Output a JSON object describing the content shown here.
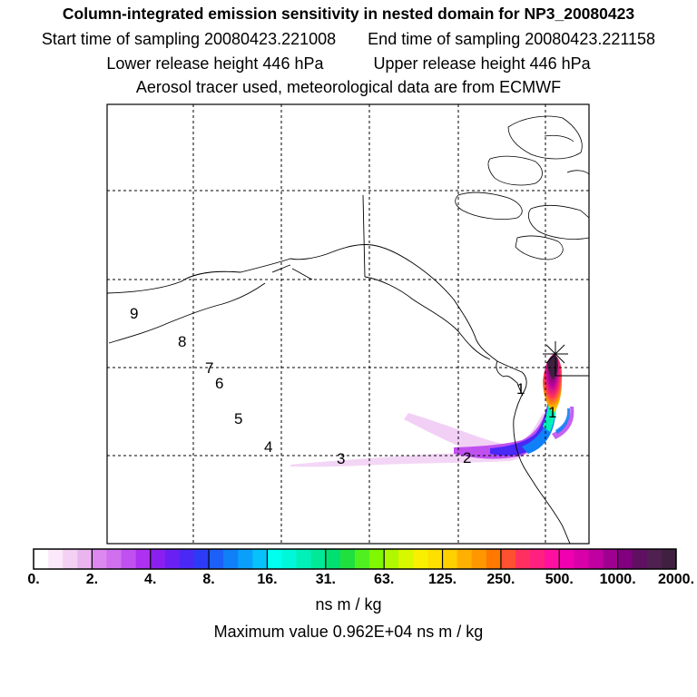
{
  "header": {
    "title": "Column-integrated emission sensitivity in nested domain for NP3_20080423",
    "start_time": "Start time of sampling 20080423.221008",
    "end_time": "End time of sampling 20080423.221158",
    "lower_height": "Lower release height  446 hPa",
    "upper_height": "Upper release height  446 hPa",
    "tracer_note": "Aerosol tracer used, meteorological data are from ECMWF"
  },
  "map": {
    "position_labels": [
      "1",
      "2",
      "3",
      "4",
      "5",
      "6",
      "7",
      "8",
      "9"
    ],
    "release_marker": "asterisk-star-icon"
  },
  "colorbar": {
    "ticks": [
      "0.",
      "2.",
      "4.",
      "8.",
      "16.",
      "31.",
      "63.",
      "125.",
      "250.",
      "500.",
      "1000.",
      "2000."
    ],
    "colors": [
      "#ffffff",
      "#fbe9fb",
      "#f4d0f4",
      "#eab5ef",
      "#dd88ee",
      "#d070ee",
      "#c050f0",
      "#ae30f0",
      "#8a20f0",
      "#6a20f2",
      "#4a28f6",
      "#2c3cf6",
      "#1d60f8",
      "#1080f8",
      "#0aa0fa",
      "#08c0fa",
      "#00ffee",
      "#00f8d8",
      "#00f0b8",
      "#00e898",
      "#00e070",
      "#20e040",
      "#50f020",
      "#80f800",
      "#b0f800",
      "#d8f800",
      "#f8f000",
      "#fde000",
      "#ffd000",
      "#ffb000",
      "#ff9800",
      "#ff7800",
      "#ff5030",
      "#ff3060",
      "#ff2080",
      "#ff10a0",
      "#f000b0",
      "#d800a8",
      "#c000a0",
      "#a00090",
      "#800080",
      "#601060",
      "#502050",
      "#402040"
    ],
    "unit": "ns m / kg",
    "max_value": "Maximum value  0.962E+04 ns m / kg"
  }
}
